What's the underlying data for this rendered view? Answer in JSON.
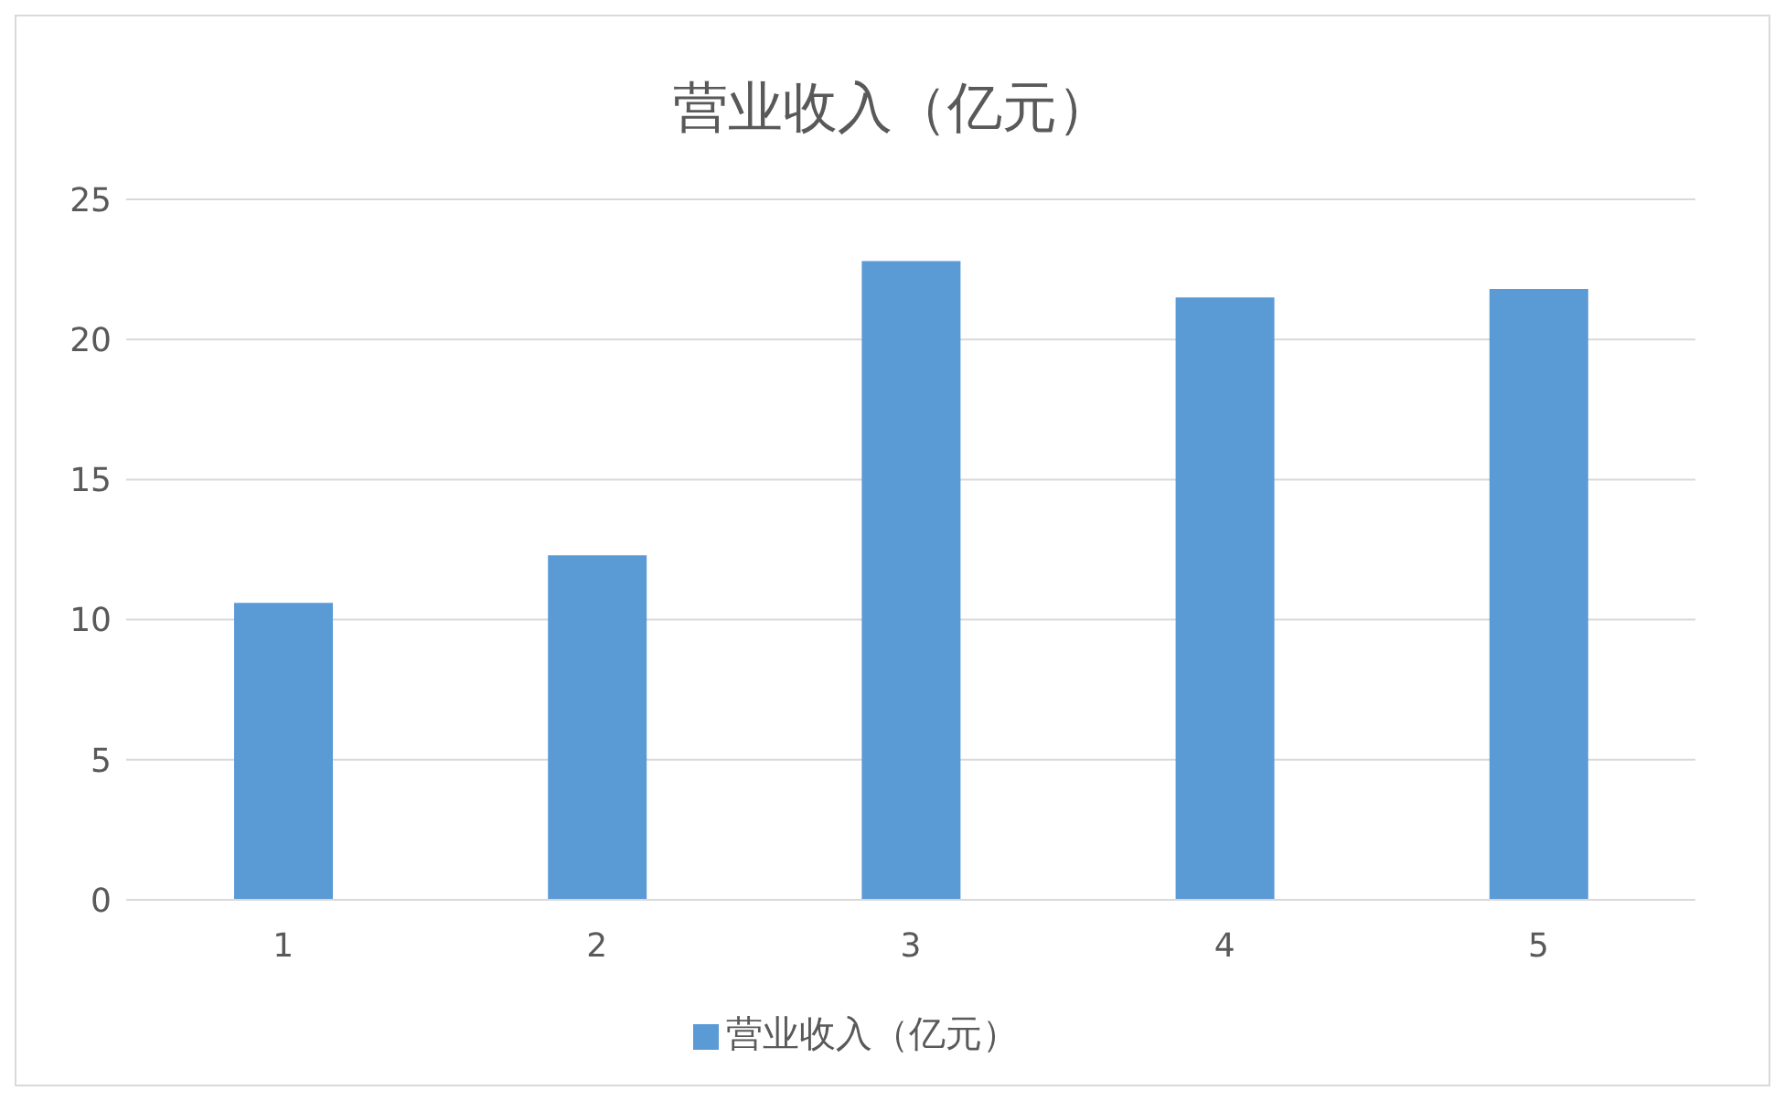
{
  "chart_data": {
    "type": "bar",
    "title": "营业收入（亿元）",
    "categories": [
      "1",
      "2",
      "3",
      "4",
      "5"
    ],
    "series": [
      {
        "name": "营业收入（亿元）",
        "color": "#5b9bd5",
        "values": [
          10.6,
          12.3,
          22.8,
          21.5,
          21.8
        ]
      }
    ],
    "ylim": [
      0,
      25
    ],
    "yticks": [
      0,
      5,
      10,
      15,
      20,
      25
    ],
    "grid": "y",
    "legend": "bottom"
  }
}
